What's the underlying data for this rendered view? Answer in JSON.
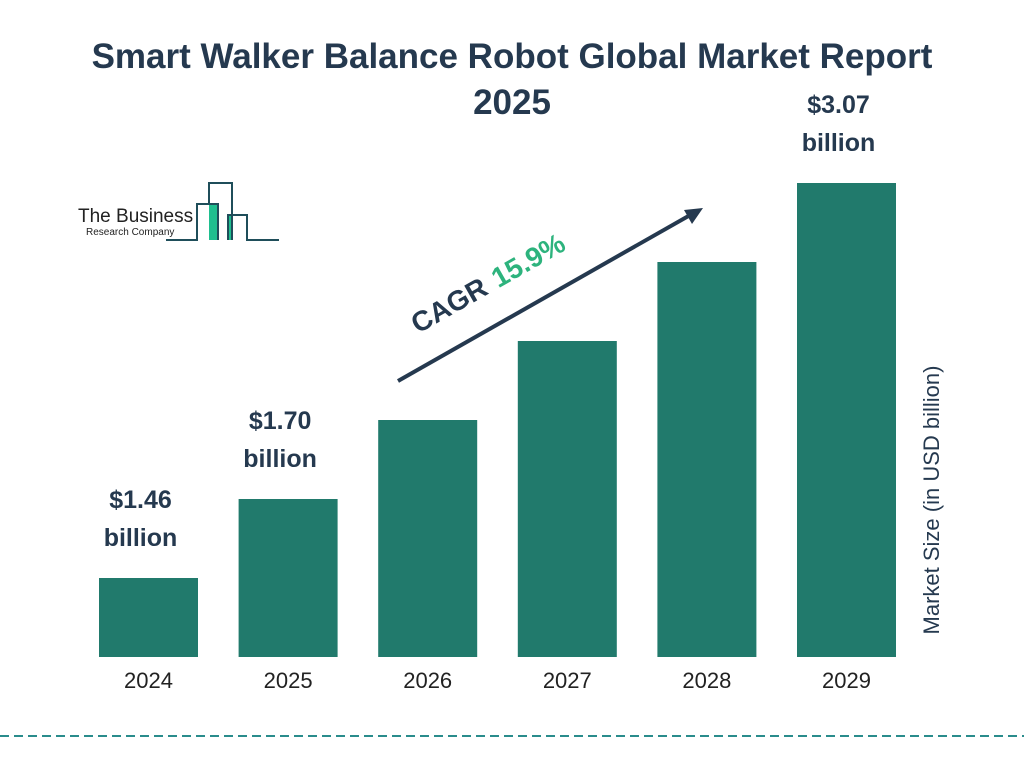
{
  "title": "Smart Walker Balance Robot Global Market Report 2025",
  "logo": {
    "line1": "The Business",
    "line2": "Research Company"
  },
  "colors": {
    "bar": "#217a6c",
    "text": "#25394f",
    "cagr": "#2db37d",
    "logo_green": "#1fbf8f"
  },
  "chart_data": {
    "type": "bar",
    "categories": [
      "2024",
      "2025",
      "2026",
      "2027",
      "2028",
      "2029"
    ],
    "values": [
      1.46,
      1.7,
      1.97,
      2.28,
      2.64,
      3.07
    ],
    "data_labels": [
      "$1.46",
      "$1.70",
      null,
      null,
      null,
      "$3.07"
    ],
    "data_label_unit": "billion",
    "ylabel": "Market Size (in USD billion)",
    "annotation": {
      "label": "CAGR",
      "value": "15.9%"
    },
    "grid": false
  }
}
